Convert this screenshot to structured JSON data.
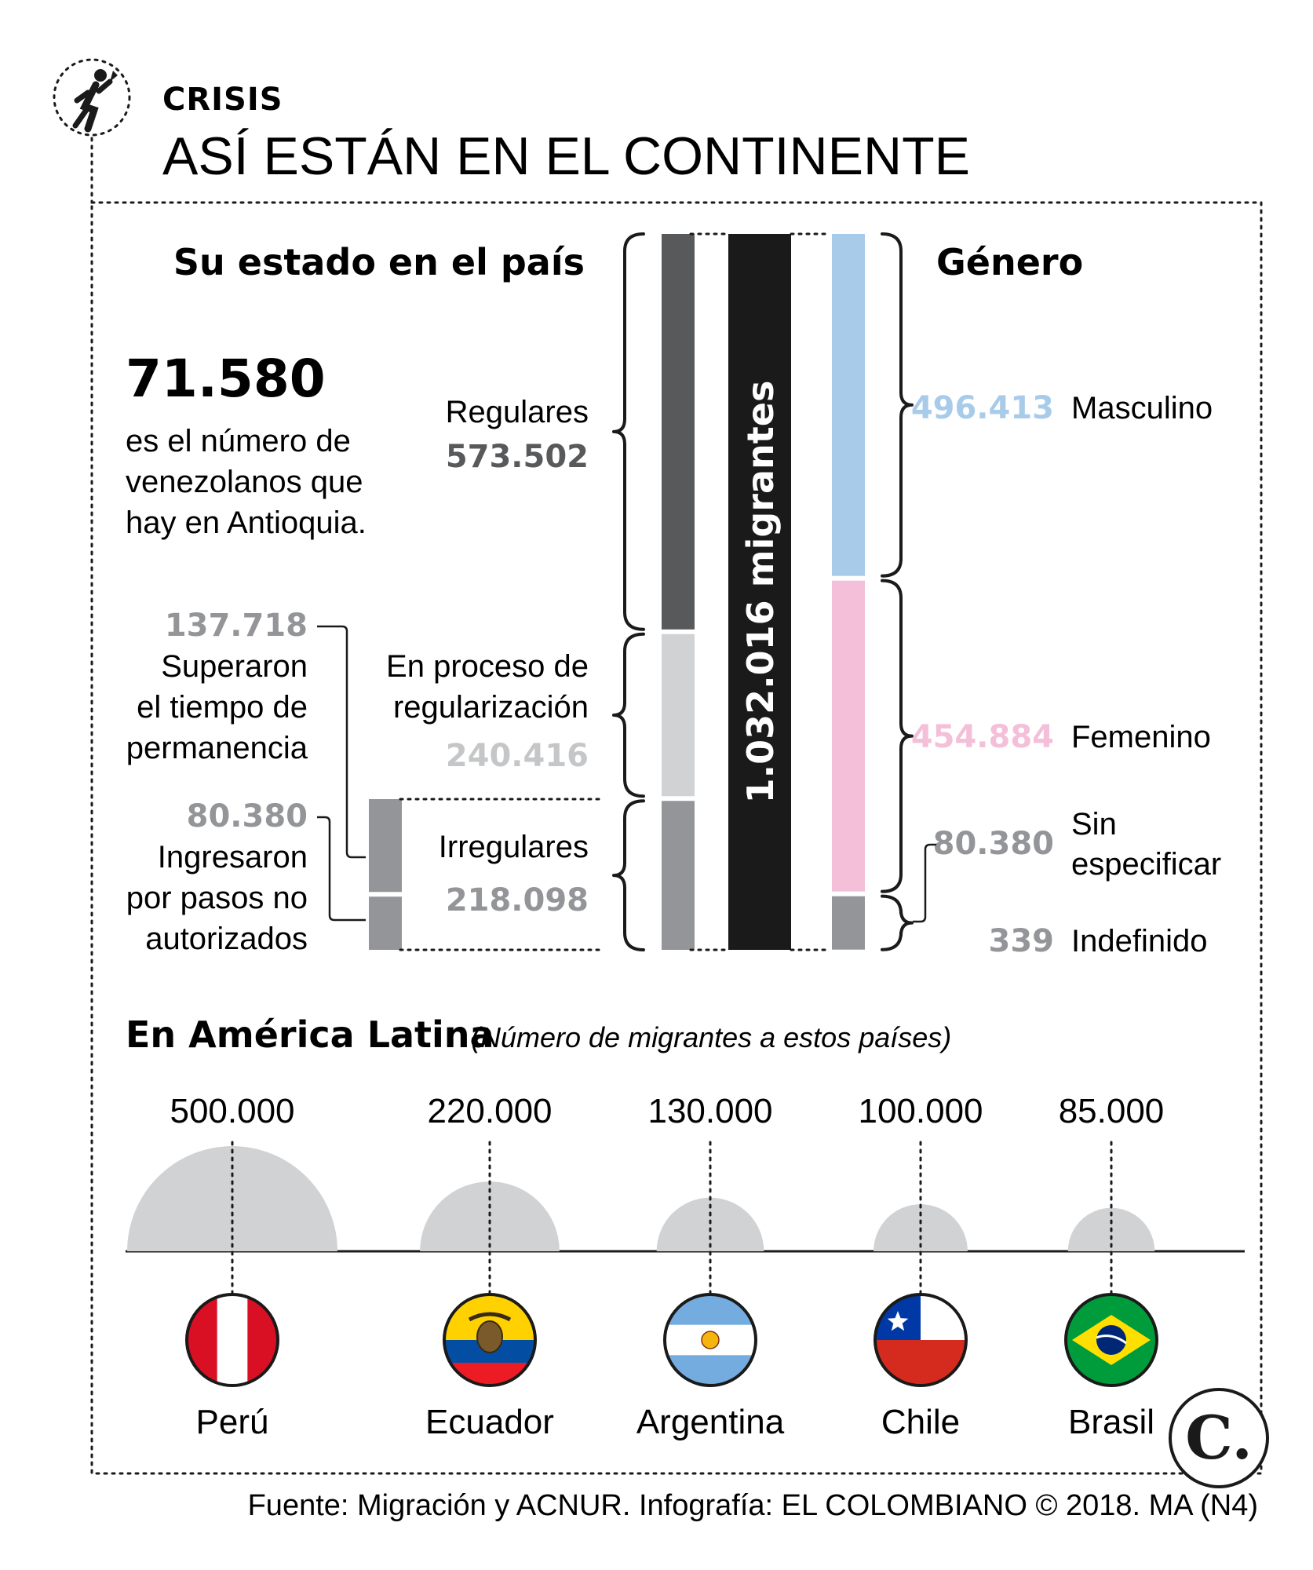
{
  "header": {
    "kicker": "CRISIS",
    "title": "ASÍ ESTÁN EN EL CONTINENTE",
    "icon": "migrant-walking-icon"
  },
  "status": {
    "title": "Su estado en el país",
    "regulares": {
      "label": "Regulares",
      "value": "573.502",
      "amount": 573502,
      "color": "#58595b"
    },
    "proceso": {
      "label_1": "En proceso de",
      "label_2": "regularización",
      "value": "240.416",
      "amount": 240416,
      "color": "#d1d2d4"
    },
    "irregulares": {
      "label": "Irregulares",
      "value": "218.098",
      "amount": 218098,
      "color": "#939598"
    },
    "superaron": {
      "value": "137.718",
      "line_1": "Superaron",
      "line_2": "el tiempo de",
      "line_3": "permanencia"
    },
    "ingresaron": {
      "value": "80.380",
      "line_1": "Ingresaron",
      "line_2": "por pasos no",
      "line_3": "autorizados"
    }
  },
  "antioquia": {
    "number": "71.580",
    "line_1": "es el número de",
    "line_2": "venezolanos que",
    "line_3": "hay en Antioquia."
  },
  "total": {
    "label": "1.032.016 migrantes",
    "amount": 1032016
  },
  "gender": {
    "title": "Género",
    "masculino": {
      "label": "Masculino",
      "value": "496.413",
      "amount": 496413,
      "color": "#a8cbea"
    },
    "femenino": {
      "label": "Femenino",
      "value": "454.884",
      "amount": 454884,
      "color": "#f4bfd8"
    },
    "sin_especificar": {
      "label_1": "Sin",
      "label_2": "especificar",
      "value": "80.380",
      "amount": 80380,
      "color": "#939598"
    },
    "indefinido": {
      "label": "Indefinido",
      "value": "339",
      "amount": 339
    }
  },
  "latam": {
    "title": "En América Latina",
    "subtitle": "(Número de migrantes a estos países)",
    "countries": [
      {
        "name": "Perú",
        "value": "500.000",
        "amount": 500000,
        "flag": "peru-flag-icon"
      },
      {
        "name": "Ecuador",
        "value": "220.000",
        "amount": 220000,
        "flag": "ecuador-flag-icon"
      },
      {
        "name": "Argentina",
        "value": "130.000",
        "amount": 130000,
        "flag": "argentina-flag-icon"
      },
      {
        "name": "Chile",
        "value": "100.000",
        "amount": 100000,
        "flag": "chile-flag-icon"
      },
      {
        "name": "Brasil",
        "value": "85.000",
        "amount": 85000,
        "flag": "brazil-flag-icon"
      }
    ]
  },
  "footer": {
    "source": "Fuente: Migración y ACNUR. Infografía: EL COLOMBIANO © 2018. MA (N4)",
    "logo_letter": "C."
  },
  "colors": {
    "text": "#1a1a1a",
    "regular_value": "#58595b",
    "proceso_value": "#c5c6c8",
    "gray_value": "#939598",
    "masc_value": "#a8cbea",
    "fem_value": "#f4bfd8",
    "semicircle": "#d1d2d4"
  }
}
